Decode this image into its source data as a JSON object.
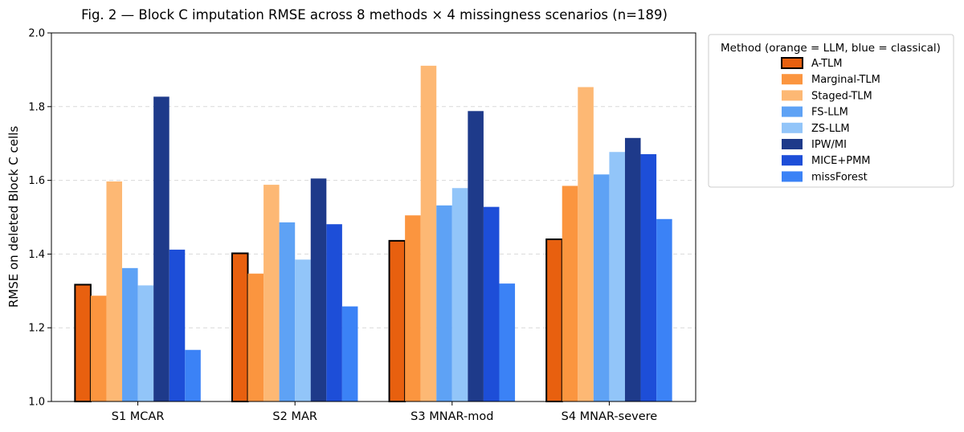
{
  "chart_data": {
    "type": "bar",
    "title": "Fig. 2 — Block C imputation RMSE across 8 methods × 4 missingness scenarios (n=189)",
    "xlabel": "",
    "ylabel": "RMSE on deleted Block C cells",
    "ylim": [
      1.0,
      2.0
    ],
    "yticks": [
      1.0,
      1.2,
      1.4,
      1.6,
      1.8,
      2.0
    ],
    "ytick_labels": [
      "1.0",
      "1.2",
      "1.4",
      "1.6",
      "1.8",
      "2.0"
    ],
    "grid": "y-dashed",
    "categories": [
      "S1 MCAR",
      "S2 MAR",
      "S3 MNAR-mod",
      "S4 MNAR-severe"
    ],
    "legend": {
      "title": "Method (orange = LLM, blue = classical)",
      "placement": "outside-upper-right"
    },
    "series": [
      {
        "name": "A-TLM",
        "color": "#e8600f",
        "outlined": true,
        "values": [
          1.317,
          1.402,
          1.436,
          1.44
        ]
      },
      {
        "name": "Marginal-TLM",
        "color": "#fb953f",
        "values": [
          1.287,
          1.347,
          1.505,
          1.585
        ]
      },
      {
        "name": "Staged-TLM",
        "color": "#fdb874",
        "values": [
          1.597,
          1.588,
          1.911,
          1.853
        ]
      },
      {
        "name": "FS-LLM",
        "color": "#5ea2f5",
        "values": [
          1.362,
          1.486,
          1.532,
          1.616
        ]
      },
      {
        "name": "ZS-LLM",
        "color": "#92c5f9",
        "values": [
          1.315,
          1.385,
          1.579,
          1.677
        ]
      },
      {
        "name": "IPW/MI",
        "color": "#1e3a8a",
        "values": [
          1.827,
          1.605,
          1.788,
          1.715
        ]
      },
      {
        "name": "MICE+PMM",
        "color": "#1d4ed8",
        "values": [
          1.412,
          1.481,
          1.528,
          1.671
        ]
      },
      {
        "name": "missForest",
        "color": "#3b82f6",
        "values": [
          1.14,
          1.258,
          1.32,
          1.495
        ]
      }
    ]
  }
}
